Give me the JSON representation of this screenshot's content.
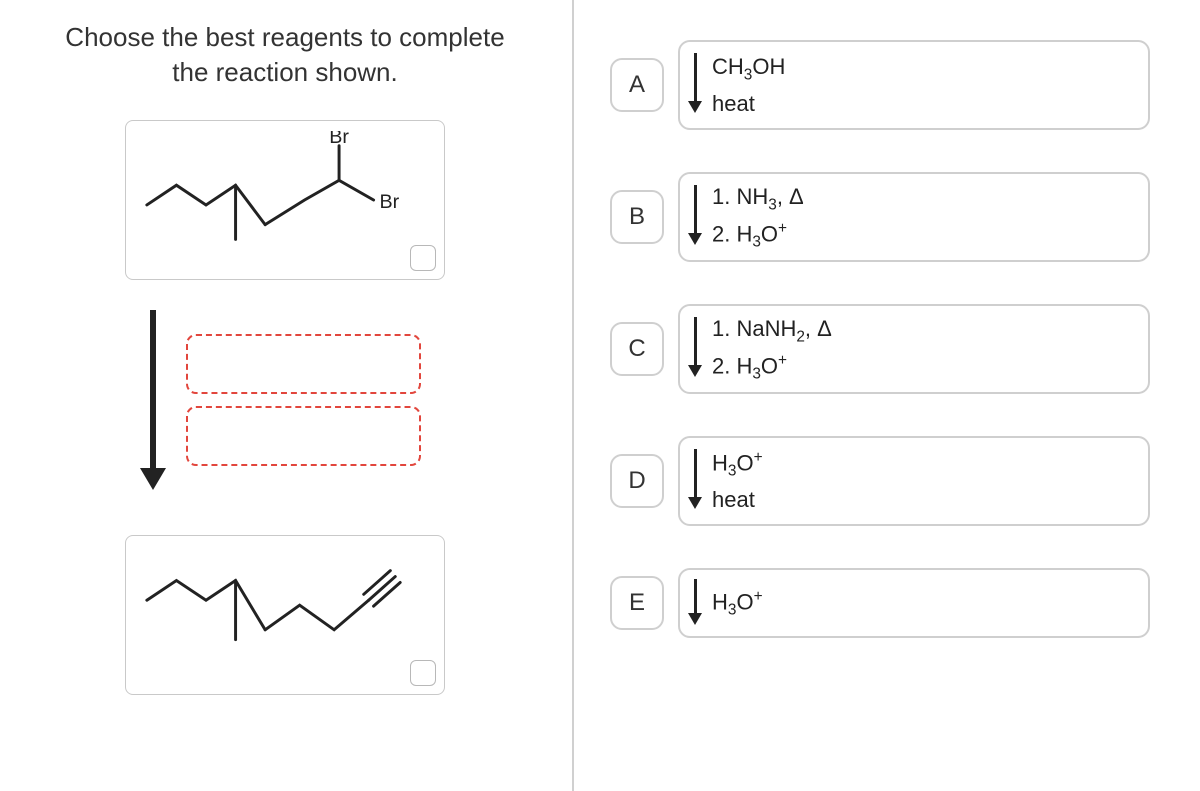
{
  "question": {
    "line1": "Choose the best reagents to complete",
    "line2": "the reaction shown."
  },
  "molecules": {
    "start": {
      "label1": "Br",
      "label2": "Br"
    }
  },
  "colors": {
    "dropzone_border": "#e2463d",
    "card_border": "#c9c9c9",
    "bond": "#222222",
    "option_border": "#cfcfcf"
  },
  "options": [
    {
      "letter": "A",
      "lines": [
        "CH<sub>3</sub>OH",
        "heat"
      ]
    },
    {
      "letter": "B",
      "lines": [
        "1. NH<sub>3</sub>, Δ",
        "2. H<sub>3</sub>O<sup>+</sup>"
      ]
    },
    {
      "letter": "C",
      "lines": [
        "1. NaNH<sub>2</sub>, Δ",
        "2. H<sub>3</sub>O<sup>+</sup>"
      ]
    },
    {
      "letter": "D",
      "lines": [
        "H<sub>3</sub>O<sup>+</sup>",
        "heat"
      ]
    },
    {
      "letter": "E",
      "lines": [
        "H<sub>3</sub>O<sup>+</sup>"
      ]
    }
  ]
}
